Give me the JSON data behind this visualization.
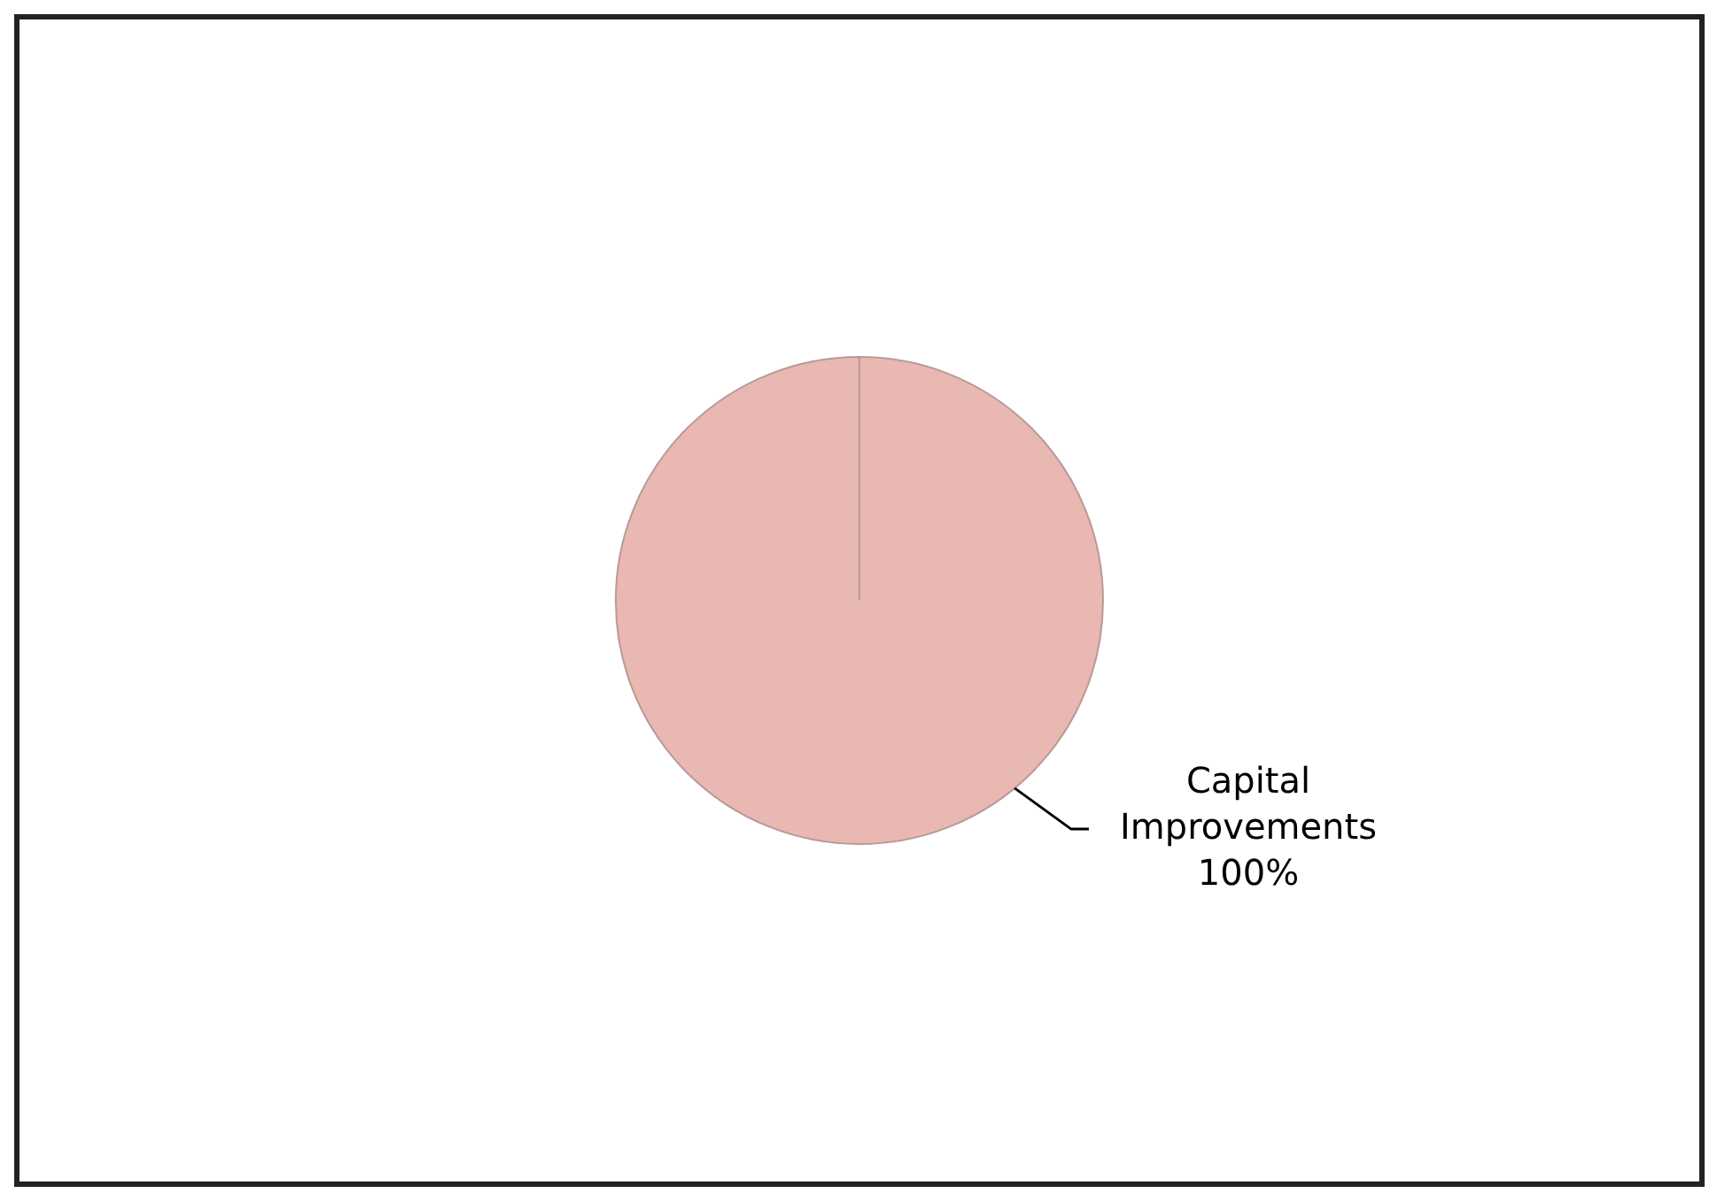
{
  "chart_data": {
    "type": "pie",
    "categories": [
      "Capital Improvements"
    ],
    "values": [
      100
    ],
    "colors": [
      "#e9b8b3"
    ],
    "value_labels": [
      "100%"
    ],
    "legend": false
  }
}
